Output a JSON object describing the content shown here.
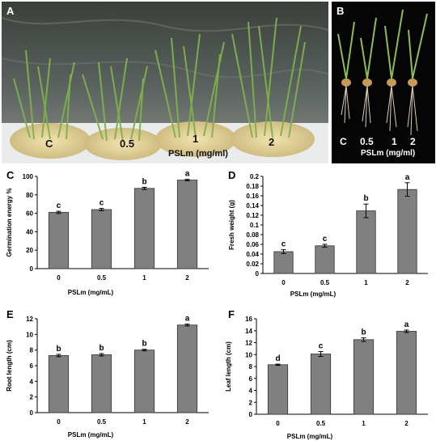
{
  "panel_a": {
    "letter": "A",
    "dish_labels": [
      "C",
      "0.5",
      "1",
      "2"
    ],
    "axis_caption": "PSLm (mg/ml)"
  },
  "panel_b": {
    "letter": "B",
    "seedling_labels": [
      "C",
      "0.5",
      "1",
      "2"
    ],
    "axis_caption": "PSLm (mg/ml)"
  },
  "chart_data": [
    {
      "id": "C",
      "type": "bar",
      "categories": [
        "0",
        "0.5",
        "1",
        "2"
      ],
      "values": [
        61,
        64,
        87,
        96
      ],
      "errors": [
        1.2,
        1.2,
        1.2,
        0.8
      ],
      "letters": [
        "c",
        "c",
        "b",
        "a"
      ],
      "xlabel": "PSLm (mg/mL)",
      "ylabel": "Germination energy  %",
      "ylim": [
        0,
        100
      ],
      "yticks": [
        "0",
        "20",
        "40",
        "60",
        "80",
        "100"
      ],
      "bar_color": "#808080"
    },
    {
      "id": "D",
      "type": "bar",
      "categories": [
        "0",
        "0.5",
        "1",
        "2"
      ],
      "values": [
        0.045,
        0.057,
        0.129,
        0.173
      ],
      "errors": [
        0.004,
        0.003,
        0.014,
        0.014
      ],
      "letters": [
        "c",
        "c",
        "b",
        "a"
      ],
      "xlabel": "PSLm (mg/mL)",
      "ylabel": "Fresh weight (g)",
      "ylim": [
        0,
        0.2
      ],
      "yticks": [
        "0",
        "0.02",
        "0.04",
        "0.06",
        "0.08",
        "0.1",
        "0.12",
        "0.14",
        "0.16",
        "0.18",
        "0.2"
      ],
      "bar_color": "#808080"
    },
    {
      "id": "E",
      "type": "bar",
      "categories": [
        "0",
        "0.5",
        "1",
        "2"
      ],
      "values": [
        7.3,
        7.4,
        8.0,
        11.2
      ],
      "errors": [
        0.15,
        0.15,
        0.1,
        0.12
      ],
      "letters": [
        "b",
        "b",
        "b",
        "a"
      ],
      "xlabel": "PSLm (mg/mL)",
      "ylabel": "Root length (cm)",
      "ylim": [
        0,
        12
      ],
      "yticks": [
        "0",
        "2",
        "4",
        "6",
        "8",
        "10",
        "12"
      ],
      "bar_color": "#808080"
    },
    {
      "id": "F",
      "type": "bar",
      "categories": [
        "0",
        "0.5",
        "1",
        "2"
      ],
      "values": [
        8.3,
        10.1,
        12.5,
        13.9
      ],
      "errors": [
        0.1,
        0.4,
        0.3,
        0.2
      ],
      "letters": [
        "d",
        "c",
        "b",
        "a"
      ],
      "xlabel": "PSLm (mg/mL)",
      "ylabel": "Leaf length (cm)",
      "ylim": [
        0,
        16
      ],
      "yticks": [
        "0",
        "2",
        "4",
        "6",
        "8",
        "10",
        "12",
        "14",
        "16"
      ],
      "bar_color": "#808080"
    }
  ]
}
